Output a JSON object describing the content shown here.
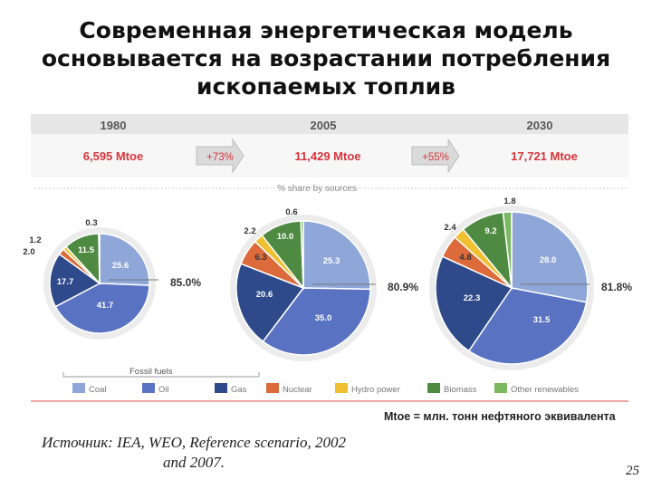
{
  "slide": {
    "title_lines": [
      "Современная энергетическая модель",
      "основывается на возрастании потребления",
      "ископаемых топлив"
    ],
    "source": "Источник: IEA, WEO, Reference scenario, 2002 and 2007.",
    "unit_note": "Mtoe = млн. тонн нефтяного эквивалента",
    "page_number": "25"
  },
  "chart_data": {
    "type": "pie",
    "subtitle": "% share by sources",
    "growth_labels": [
      "+73%",
      "+55%"
    ],
    "fossil_label": "Fossil fuels",
    "categories": [
      "Coal",
      "Oil",
      "Gas",
      "Nuclear",
      "Hydro power",
      "Biomass",
      "Other renewables"
    ],
    "colors": {
      "Coal": "#8fa6d8",
      "Oil": "#5a72c2",
      "Gas": "#2e4a8a",
      "Nuclear": "#dc6a3a",
      "Hydro power": "#f0c030",
      "Biomass": "#4e8a42",
      "Other renewables": "#7db861",
      "growth_accent": "#d9343a"
    },
    "pies": [
      {
        "year": "1980",
        "total": "6,595 Mtoe",
        "fossil_share": "85.0%",
        "values": [
          25.6,
          41.7,
          17.7,
          2.0,
          1.2,
          11.5,
          0.3
        ],
        "labels": [
          "25.6",
          "41.7",
          "17.7",
          "2.0",
          "1.2",
          "11.5",
          "0.3"
        ]
      },
      {
        "year": "2005",
        "total": "11,429 Mtoe",
        "fossil_share": "80.9%",
        "values": [
          25.3,
          35.0,
          20.6,
          6.3,
          2.2,
          10.0,
          0.6
        ],
        "labels": [
          "25.3",
          "35.0",
          "20.6",
          "6.3",
          "2.2",
          "10.0",
          "0.6"
        ]
      },
      {
        "year": "2030",
        "total": "17,721 Mtoe",
        "fossil_share": "81.8%",
        "values": [
          28.0,
          31.5,
          22.3,
          4.8,
          2.4,
          9.2,
          1.8
        ],
        "labels": [
          "28.0",
          "31.5",
          "22.3",
          "4.8",
          "2.4",
          "9.2",
          "1.8"
        ]
      }
    ]
  }
}
